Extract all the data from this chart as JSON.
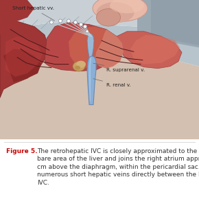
{
  "figure_label": "Figure 5.",
  "figure_label_color": "#cc0000",
  "caption_body": "The retrohepatic IVC is closely approximated to the\nbare area of the liver and joins the right atrium approximately 3\ncm above the diaphragm, within the pericardial sac. There are\nnumerous short hepatic veins directly between the liver and the\nIVC.",
  "caption_color": "#333333",
  "caption_fontsize": 6.5,
  "label_fontsize": 6.5,
  "bg_color": "#ffffff",
  "annotation_label_short_hepatic": "Short hepatic vv.",
  "annotation_label_r_suprarenal": "R. suprarenal v.",
  "annotation_label_r_renal": "R. renal v.",
  "annotation_color": "#222222",
  "annotation_fontsize": 5.2,
  "img_bg": "#dde4e8",
  "liver_dark": "#a03535",
  "liver_mid": "#b84040",
  "liver_light": "#cc6655",
  "liver_right_color": "#c87060",
  "heart_color": "#e8b0a0",
  "ivc_color": "#8ab0d8",
  "ivc_edge": "#6888b0",
  "diaphragm_color": "#b8c4cc",
  "diaphragm_light": "#ccd4da",
  "kidney_color": "#b85040",
  "sep_color": "#dddddd"
}
